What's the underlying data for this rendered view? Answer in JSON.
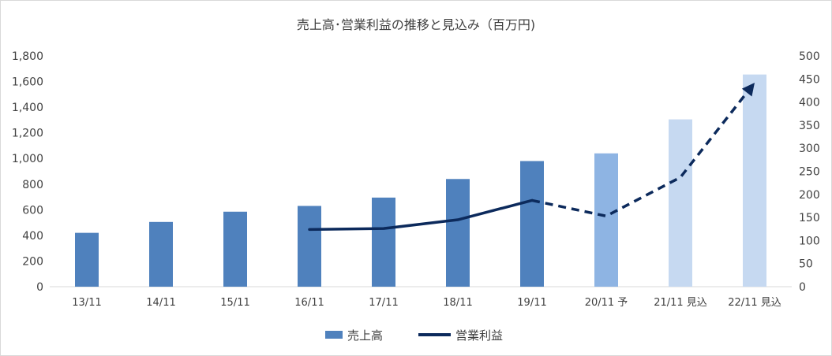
{
  "chart_data": {
    "type": "bar",
    "title": "売上高･営業利益の推移と見込み（百万円)",
    "categories": [
      "13/11",
      "14/11",
      "15/11",
      "16/11",
      "17/11",
      "18/11",
      "19/11",
      "20/11 予",
      "21/11 見込",
      "22/11 見込"
    ],
    "y_left": {
      "lim": [
        0,
        1800
      ],
      "ticks": [
        "0",
        "200",
        "400",
        "600",
        "800",
        "1,000",
        "1,200",
        "1,400",
        "1,600",
        "1,800"
      ]
    },
    "y_right": {
      "lim": [
        0,
        500
      ],
      "ticks": [
        "0",
        "50",
        "100",
        "150",
        "200",
        "250",
        "300",
        "350",
        "400",
        "450",
        "500"
      ]
    },
    "series": [
      {
        "name": "売上高",
        "type": "bar",
        "axis": "left",
        "values": [
          420,
          505,
          585,
          630,
          695,
          840,
          980,
          1040,
          1305,
          1655
        ],
        "colors": [
          "#4f81bd",
          "#4f81bd",
          "#4f81bd",
          "#4f81bd",
          "#4f81bd",
          "#4f81bd",
          "#4f81bd",
          "#8eb4e3",
          "#c6d9f1",
          "#c6d9f1"
        ]
      },
      {
        "name": "営業利益",
        "type": "line",
        "axis": "right",
        "color": "#0c2a5c",
        "values": [
          null,
          null,
          null,
          124,
          126,
          145,
          187,
          153,
          237,
          442
        ],
        "solid_until_index": 6
      }
    ],
    "legend_position": "bottom",
    "grid": false
  }
}
